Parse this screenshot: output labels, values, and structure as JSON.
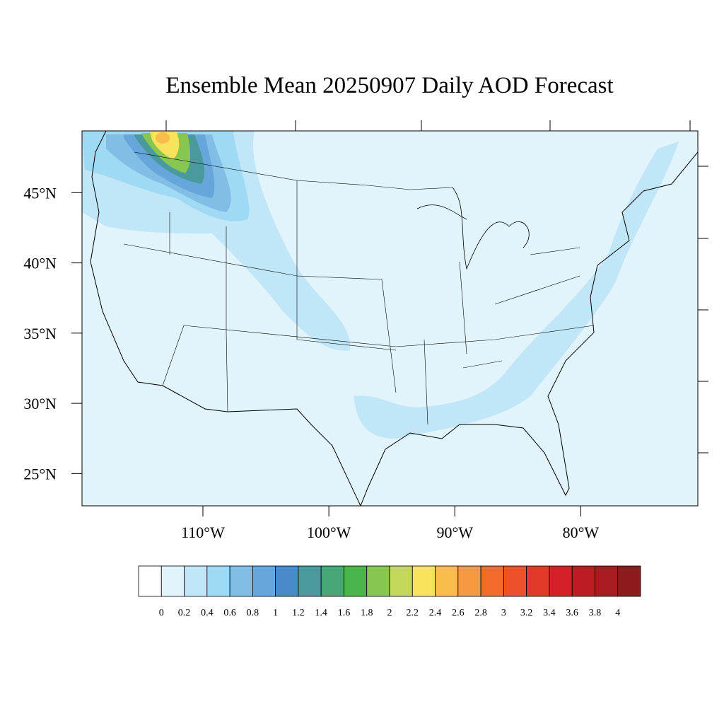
{
  "chart_data": {
    "type": "map",
    "title": "Ensemble Mean 20250907 Daily AOD Forecast",
    "lonlim": [
      -119.6,
      -70.7
    ],
    "latlim": [
      22.7,
      49.4
    ],
    "lat_ticks": [
      {
        "value": 45,
        "label": "45°N"
      },
      {
        "value": 40,
        "label": "40°N"
      },
      {
        "value": 35,
        "label": "35°N"
      },
      {
        "value": 30,
        "label": "30°N"
      },
      {
        "value": 25,
        "label": "25°N"
      }
    ],
    "lon_ticks": [
      {
        "value": -110,
        "label": "110°W"
      },
      {
        "value": -100,
        "label": "100°W"
      },
      {
        "value": -90,
        "label": "90°W"
      },
      {
        "value": -80,
        "label": "80°W"
      }
    ],
    "colorbar": {
      "levels": [
        0,
        0.2,
        0.4,
        0.6,
        0.8,
        1,
        1.2,
        1.4,
        1.6,
        1.8,
        2,
        2.2,
        2.4,
        2.6,
        2.8,
        3,
        3.2,
        3.4,
        3.6,
        3.8,
        4
      ],
      "colors": [
        "#ffffff",
        "#e1f3fb",
        "#c0e6f7",
        "#9fd9f3",
        "#82bde6",
        "#66a6db",
        "#4b8ac9",
        "#4a9a9d",
        "#47a776",
        "#4ab54b",
        "#86c651",
        "#c3d85a",
        "#f9e35c",
        "#f9bd4a",
        "#f79a3f",
        "#f36a2b",
        "#ec5129",
        "#e13a28",
        "#d42129",
        "#bd1c25",
        "#a81b22",
        "#8f1a1d"
      ]
    }
  }
}
